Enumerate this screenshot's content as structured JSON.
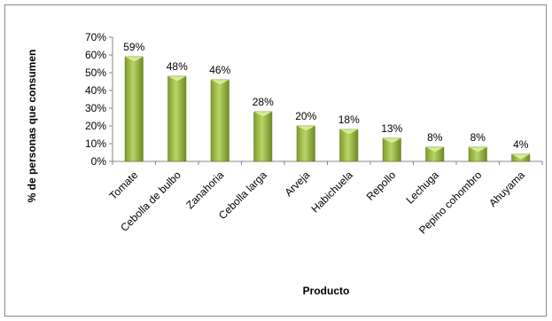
{
  "chart_data": {
    "type": "bar",
    "title": "",
    "xlabel": "Producto",
    "ylabel": "% de personas que consumen",
    "ylim": [
      0,
      70
    ],
    "yticks": [
      "0%",
      "10%",
      "20%",
      "30%",
      "40%",
      "50%",
      "60%",
      "70%"
    ],
    "categories": [
      "Tomate",
      "Cebolla de bulbo",
      "Zanahoria",
      "Cebolla larga",
      "Arveja",
      "Habichuela",
      "Repollo",
      "Lechuga",
      "Pepino cohombro",
      "Ahuyama"
    ],
    "values": [
      59,
      48,
      46,
      28,
      20,
      18,
      13,
      8,
      8,
      4
    ],
    "data_labels": [
      "59%",
      "48%",
      "46%",
      "28%",
      "20%",
      "18%",
      "13%",
      "8%",
      "8%",
      "4%"
    ],
    "grid": false,
    "legend": "none",
    "colors": {
      "bar_light": "#c6e07a",
      "bar_mid": "#93b33b",
      "bar_dark": "#5f7a1f",
      "top_cap": "#d8ec96"
    }
  }
}
